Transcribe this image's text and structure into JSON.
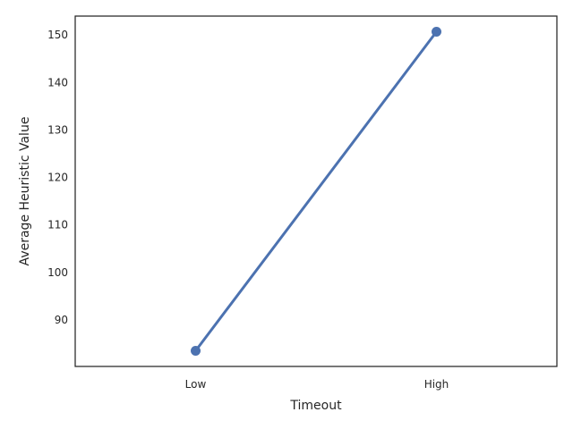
{
  "chart_data": {
    "type": "line",
    "categories": [
      "Low",
      "High"
    ],
    "series": [
      {
        "values": [
          83.5,
          150.7
        ],
        "color": "#4c72b0"
      }
    ],
    "xlabel": "Timeout",
    "ylabel": "Average Heuristic Value",
    "ylim": [
      80.2,
      154.0
    ],
    "yticks": [
      90,
      100,
      110,
      120,
      130,
      140,
      150
    ],
    "grid": false,
    "legend": false
  }
}
